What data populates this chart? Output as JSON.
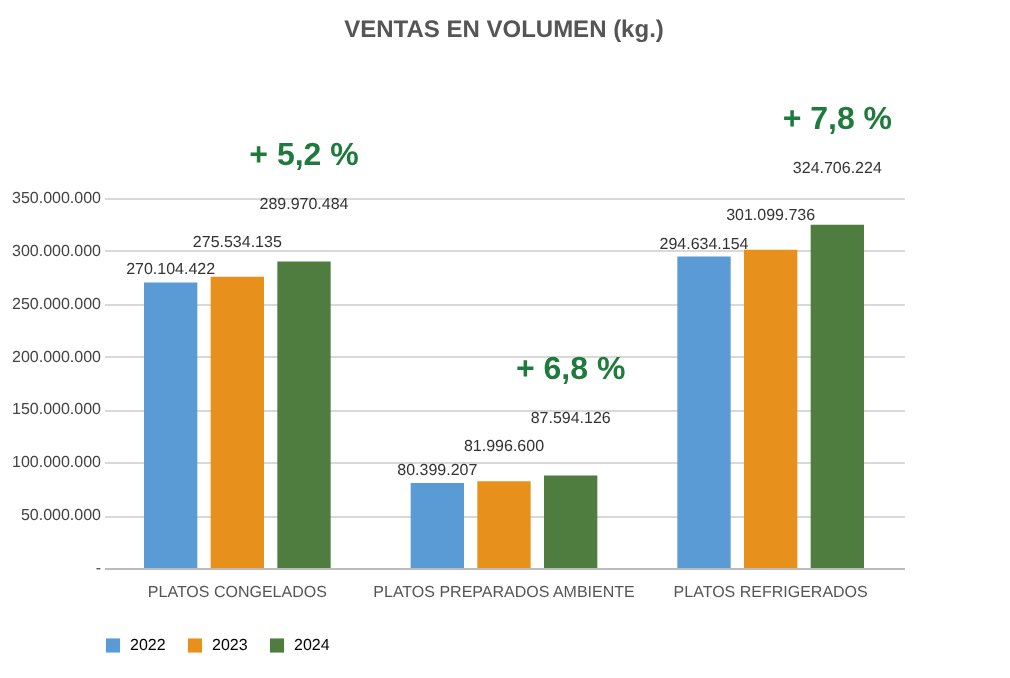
{
  "chart_data": {
    "type": "bar",
    "title": "VENTAS EN VOLUMEN (kg.)",
    "categories": [
      "PLATOS CONGELADOS",
      "PLATOS PREPARADOS AMBIENTE",
      "PLATOS REFRIGERADOS"
    ],
    "series": [
      {
        "name": "2022",
        "color": "#5b9bd5",
        "values": [
          270104422,
          80399207,
          294634154
        ],
        "value_labels": [
          "270.104.422",
          "80.399.207",
          "294.634.154"
        ]
      },
      {
        "name": "2023",
        "color": "#e8901c",
        "values": [
          275534135,
          81996600,
          301099736
        ],
        "value_labels": [
          "275.534.135",
          "81.996.600",
          "301.099.736"
        ]
      },
      {
        "name": "2024",
        "color": "#4e7d3f",
        "values": [
          289970484,
          87594126,
          324706224
        ],
        "value_labels": [
          "289.970.484",
          "87.594.126",
          "324.706.224"
        ]
      }
    ],
    "ylim": [
      0,
      350000000
    ],
    "yticks": [
      {
        "value": 0,
        "label": "-"
      },
      {
        "value": 50000000,
        "label": "50.000.000"
      },
      {
        "value": 100000000,
        "label": "100.000.000"
      },
      {
        "value": 150000000,
        "label": "150.000.000"
      },
      {
        "value": 200000000,
        "label": "200.000.000"
      },
      {
        "value": 250000000,
        "label": "250.000.000"
      },
      {
        "value": 300000000,
        "label": "300.000.000"
      },
      {
        "value": 350000000,
        "label": "350.000.000"
      }
    ],
    "annotations": [
      "+ 5,2 %",
      "+ 6,8 %",
      "+ 7,8 %"
    ],
    "grid": "y",
    "legend": "bottom"
  }
}
